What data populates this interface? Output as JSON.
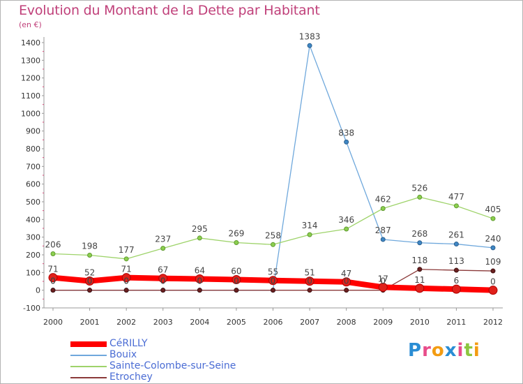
{
  "title": "Evolution du Montant de la Dette par Habitant",
  "subtitle": "(en €)",
  "chart_data": {
    "type": "line",
    "title": "Evolution du Montant de la Dette par Habitant",
    "subtitle": "(en €)",
    "xlabel": "",
    "ylabel": "",
    "x": [
      "2000",
      "2001",
      "2002",
      "2003",
      "2004",
      "2005",
      "2006",
      "2007",
      "2008",
      "2009",
      "2010",
      "2011",
      "2012"
    ],
    "ylim": [
      -100,
      1400
    ],
    "yticks": [
      -100,
      0,
      100,
      200,
      300,
      400,
      500,
      600,
      700,
      800,
      900,
      1000,
      1100,
      1200,
      1300,
      1400
    ],
    "grid": false,
    "legend_position": "bottom-left",
    "series": [
      {
        "name": "CéRILLY",
        "color": "#ff0000",
        "values": [
          71,
          52,
          71,
          67,
          64,
          60,
          55,
          51,
          47,
          17,
          11,
          6,
          0
        ],
        "labels": [
          "71",
          "52",
          "71",
          "67",
          "64",
          "60",
          "55",
          "51",
          "47",
          "17",
          "11",
          "6",
          "0"
        ]
      },
      {
        "name": "Bouix",
        "color": "#6fa8dc",
        "values": [
          0,
          0,
          0,
          0,
          0,
          0,
          0,
          1383,
          838,
          287,
          268,
          261,
          240
        ],
        "labels": [
          "0",
          "0",
          "0",
          "0",
          "0",
          "0",
          "0",
          "1383",
          "838",
          "287",
          "268",
          "261",
          "240"
        ]
      },
      {
        "name": "Sainte-Colombe-sur-Seine",
        "color": "#9ed36a",
        "values": [
          206,
          198,
          177,
          237,
          295,
          269,
          258,
          314,
          346,
          462,
          526,
          477,
          405
        ],
        "labels": [
          "206",
          "198",
          "177",
          "237",
          "295",
          "269",
          "258",
          "314",
          "346",
          "462",
          "526",
          "477",
          "405"
        ]
      },
      {
        "name": "Etrochey",
        "color": "#8b3a3a",
        "values": [
          0,
          0,
          0,
          0,
          0,
          0,
          0,
          0,
          0,
          0,
          118,
          113,
          109
        ],
        "labels": [
          "0",
          "0",
          "0",
          "0",
          "0",
          "0",
          "0",
          "0",
          "0",
          "0",
          "118",
          "113",
          "109"
        ]
      }
    ]
  },
  "legend": [
    {
      "label": "CéRILLY"
    },
    {
      "label": "Bouix"
    },
    {
      "label": "Sainte-Colombe-sur-Seine"
    },
    {
      "label": "Etrochey"
    }
  ],
  "logo": {
    "letters": [
      "P",
      "r",
      "o",
      "x",
      "i",
      "t",
      "i"
    ],
    "colors": [
      "#2a8dd4",
      "#e84c8a",
      "#f39c12",
      "#2a8dd4",
      "#e84c8a",
      "#8cc63f",
      "#f39c12"
    ]
  }
}
